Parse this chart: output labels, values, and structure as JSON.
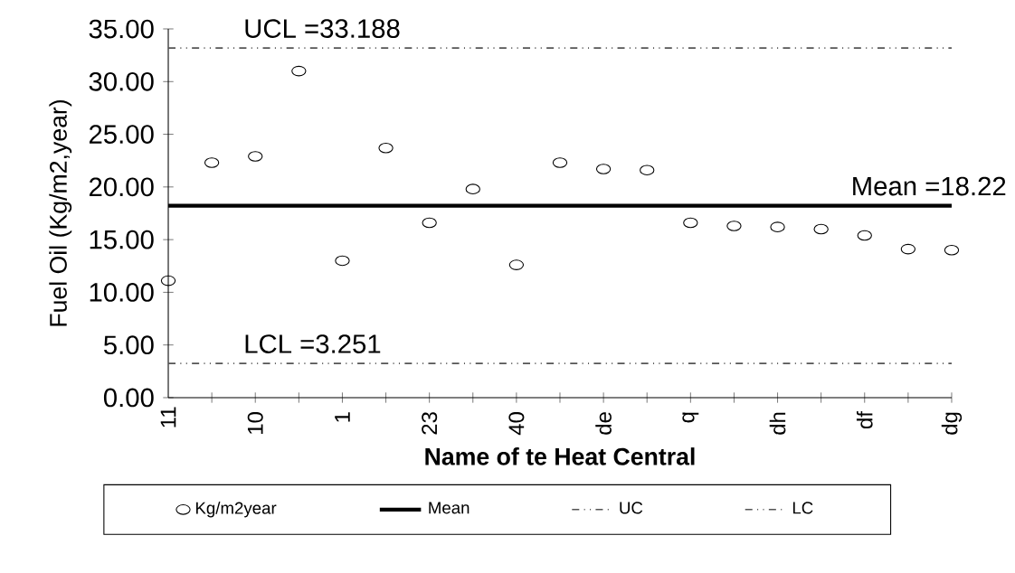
{
  "chart_data": {
    "type": "scatter",
    "xlabel": "Name of te Heat Central",
    "ylabel": "Fuel Oil (Kg/m2,year)",
    "categories": [
      "11",
      null,
      "10",
      null,
      "1",
      null,
      "23",
      null,
      "40",
      null,
      "de",
      null,
      "q",
      null,
      "dh",
      null,
      "df",
      null,
      "dg"
    ],
    "series": [
      {
        "name": "Kg/m2year",
        "color": "#000000",
        "marker": "circle",
        "values": [
          11.1,
          22.3,
          22.9,
          31.0,
          13.0,
          23.7,
          16.6,
          19.8,
          12.6,
          22.3,
          21.7,
          21.6,
          16.6,
          16.3,
          16.2,
          16.0,
          15.4,
          14.1,
          14.0
        ]
      },
      {
        "name": "Mean",
        "type": "line",
        "color": "#000000",
        "line_style": "solid",
        "values": [
          18.22,
          18.22,
          18.22,
          18.22,
          18.22,
          18.22,
          18.22,
          18.22,
          18.22,
          18.22,
          18.22,
          18.22,
          18.22,
          18.22,
          18.22,
          18.22,
          18.22,
          18.22,
          18.22
        ]
      },
      {
        "name": "UC",
        "type": "line",
        "color": "#555555",
        "line_style": "dotted",
        "values": [
          33.188,
          33.188,
          33.188,
          33.188,
          33.188,
          33.188,
          33.188,
          33.188,
          33.188,
          33.188,
          33.188,
          33.188,
          33.188,
          33.188,
          33.188,
          33.188,
          33.188,
          33.188,
          33.188
        ]
      },
      {
        "name": "LC",
        "type": "line",
        "color": "#555555",
        "line_style": "dotted",
        "values": [
          3.251,
          3.251,
          3.251,
          3.251,
          3.251,
          3.251,
          3.251,
          3.251,
          3.251,
          3.251,
          3.251,
          3.251,
          3.251,
          3.251,
          3.251,
          3.251,
          3.251,
          3.251,
          3.251
        ]
      }
    ],
    "annotations": [
      {
        "text": "UCL =33.188",
        "x": "11",
        "y": 33.188
      },
      {
        "text": "Mean =18.22",
        "x": "dg",
        "y": 18.22
      },
      {
        "text": "LCL =3.251",
        "x": "11",
        "y": 3.251
      }
    ],
    "ylim": [
      0,
      35
    ],
    "yticks": [
      {
        "value": 0,
        "label": "0.00"
      },
      {
        "value": 5,
        "label": "5.00"
      },
      {
        "value": 10,
        "label": "10.00"
      },
      {
        "value": 15,
        "label": "15.00"
      },
      {
        "value": 20,
        "label": "20.00"
      },
      {
        "value": 25,
        "label": "25.00"
      },
      {
        "value": 30,
        "label": "30.00"
      },
      {
        "value": 35,
        "label": "35.00"
      }
    ],
    "grid": false,
    "legend": "bottom"
  }
}
